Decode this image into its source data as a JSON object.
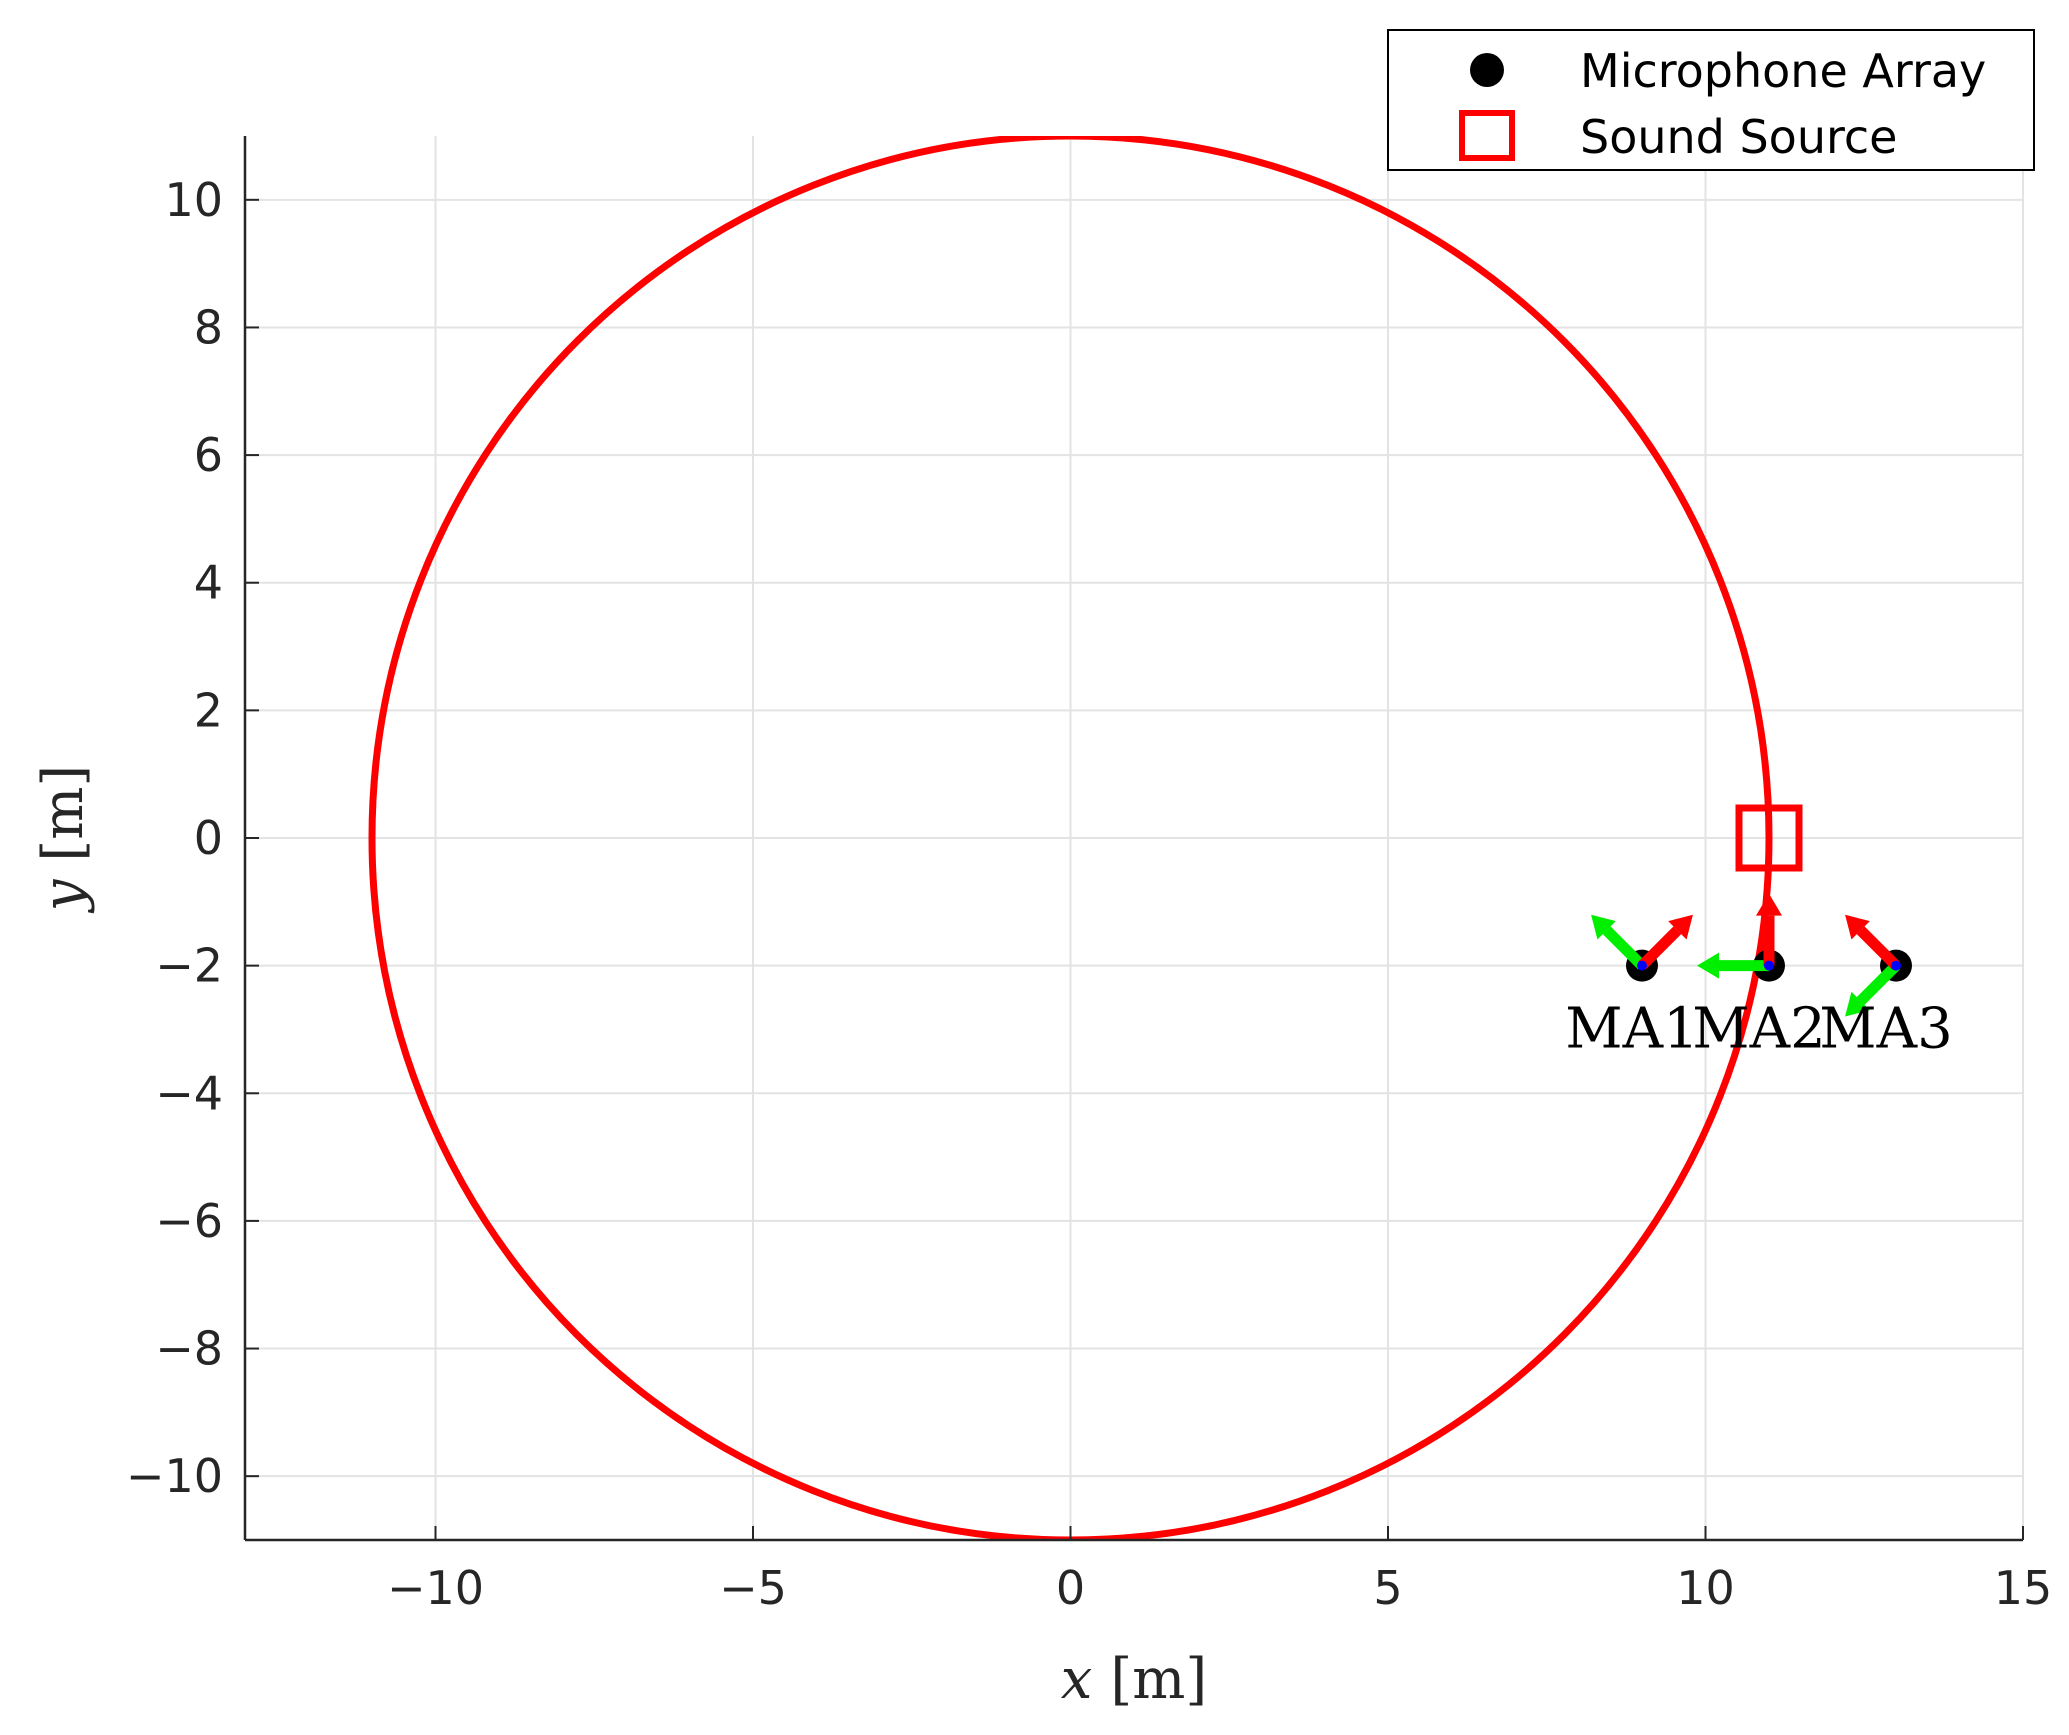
{
  "chart_data": {
    "type": "scatter",
    "xlim": [
      -13,
      15
    ],
    "ylim": [
      -11,
      11
    ],
    "x_ticks": [
      -10,
      -5,
      0,
      5,
      10,
      15
    ],
    "y_ticks": [
      -10,
      -8,
      -6,
      -4,
      -2,
      0,
      2,
      4,
      6,
      8,
      10
    ],
    "x_tick_labels": [
      "−10",
      "−5",
      "0",
      "5",
      "10",
      "15"
    ],
    "y_tick_labels": [
      "−10",
      "−8",
      "−6",
      "−4",
      "−2",
      "0",
      "2",
      "4",
      "6",
      "8",
      "10"
    ],
    "xlabel": {
      "symbol": "x",
      "unit": "[m]"
    },
    "ylabel": {
      "symbol": "y",
      "unit": "[m]"
    },
    "grid": true,
    "legend_position": "top-right",
    "legend": [
      {
        "label": "Microphone Array",
        "marker": "filled-circle",
        "color": "#000000"
      },
      {
        "label": "Sound Source",
        "marker": "square",
        "color": "#ff0000"
      }
    ],
    "trajectory": {
      "shape": "circle",
      "center": [
        0,
        0
      ],
      "radius": 11,
      "color": "#ff0000"
    },
    "sound_source": {
      "x": 11,
      "y": 0
    },
    "microphone_arrays": [
      {
        "name": "MA1",
        "x": 9,
        "y": -2,
        "x_axis_dir_deg": 45,
        "y_axis_dir_deg": 135
      },
      {
        "name": "MA2",
        "x": 11,
        "y": -2,
        "x_axis_dir_deg": 90,
        "y_axis_dir_deg": 180
      },
      {
        "name": "MA3",
        "x": 13,
        "y": -2,
        "x_axis_dir_deg": 135,
        "y_axis_dir_deg": 225
      }
    ],
    "colors": {
      "trajectory": "#ff0000",
      "array_x_axis": "#ff0000",
      "array_y_axis": "#00ee00",
      "array_z_axis": "#0000ff",
      "grid": "#e3e3e3"
    }
  }
}
